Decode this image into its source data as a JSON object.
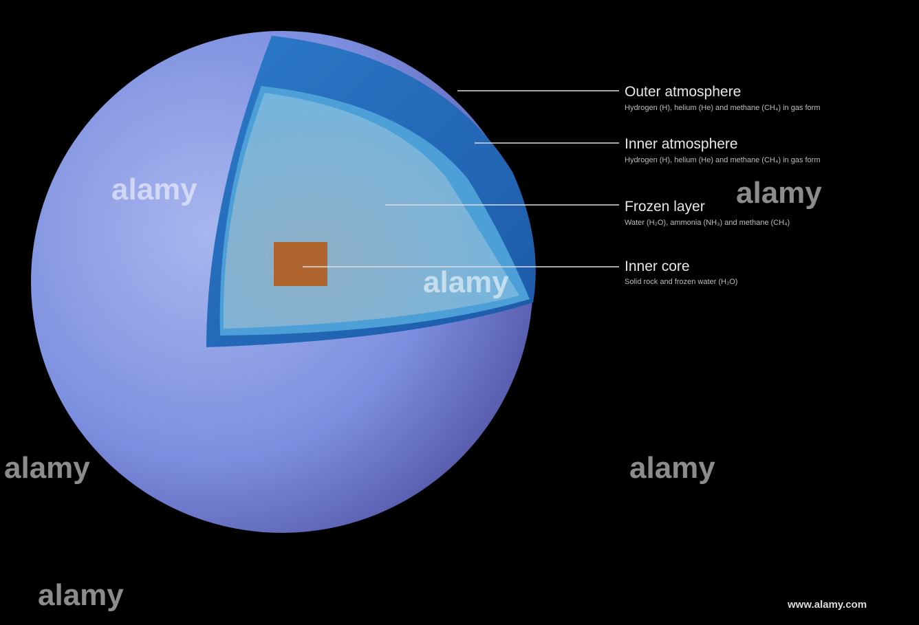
{
  "labels": [
    {
      "title": "Outer atmosphere",
      "description": "Hydrogen (H), helium (He) and methane (CH₄) in gas form"
    },
    {
      "title": "Inner atmosphere",
      "description": "Hydrogen (H), helium (He) and methane (CH₄) in gas form"
    },
    {
      "title": "Frozen layer",
      "description": "Water (H₂O), ammonia (NH₃) and methane (CH₄)"
    },
    {
      "title": "Inner core",
      "description": "Solid rock and frozen water (H₂O)"
    }
  ],
  "watermarks": [
    "alamy",
    "alamy",
    "alamy",
    "alamy",
    "alamy",
    "alamy"
  ],
  "footer": {
    "site": "www.alamy.com"
  }
}
